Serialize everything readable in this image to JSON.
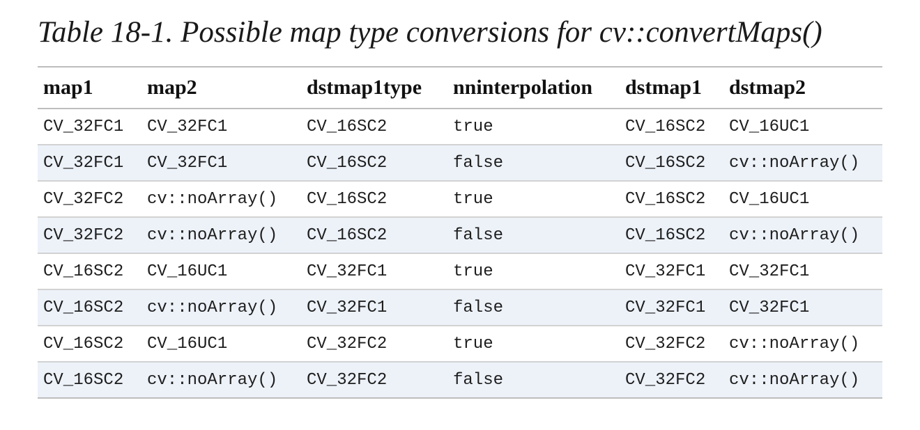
{
  "caption": "Table 18-1. Possible map type conversions for cv::convertMaps()",
  "table": {
    "headers": [
      "map1",
      "map2",
      "dstmap1type",
      "nninterpolation",
      "dstmap1",
      "dstmap2"
    ],
    "rows": [
      [
        "CV_32FC1",
        "CV_32FC1",
        "CV_16SC2",
        "true",
        "CV_16SC2",
        "CV_16UC1"
      ],
      [
        "CV_32FC1",
        "CV_32FC1",
        "CV_16SC2",
        "false",
        "CV_16SC2",
        "cv::noArray()"
      ],
      [
        "CV_32FC2",
        "cv::noArray()",
        "CV_16SC2",
        "true",
        "CV_16SC2",
        "CV_16UC1"
      ],
      [
        "CV_32FC2",
        "cv::noArray()",
        "CV_16SC2",
        "false",
        "CV_16SC2",
        "cv::noArray()"
      ],
      [
        "CV_16SC2",
        "CV_16UC1",
        "CV_32FC1",
        "true",
        "CV_32FC1",
        "CV_32FC1"
      ],
      [
        "CV_16SC2",
        "cv::noArray()",
        "CV_32FC1",
        "false",
        "CV_32FC1",
        "CV_32FC1"
      ],
      [
        "CV_16SC2",
        "CV_16UC1",
        "CV_32FC2",
        "true",
        "CV_32FC2",
        "cv::noArray()"
      ],
      [
        "CV_16SC2",
        "cv::noArray()",
        "CV_32FC2",
        "false",
        "CV_32FC2",
        "cv::noArray()"
      ]
    ]
  }
}
